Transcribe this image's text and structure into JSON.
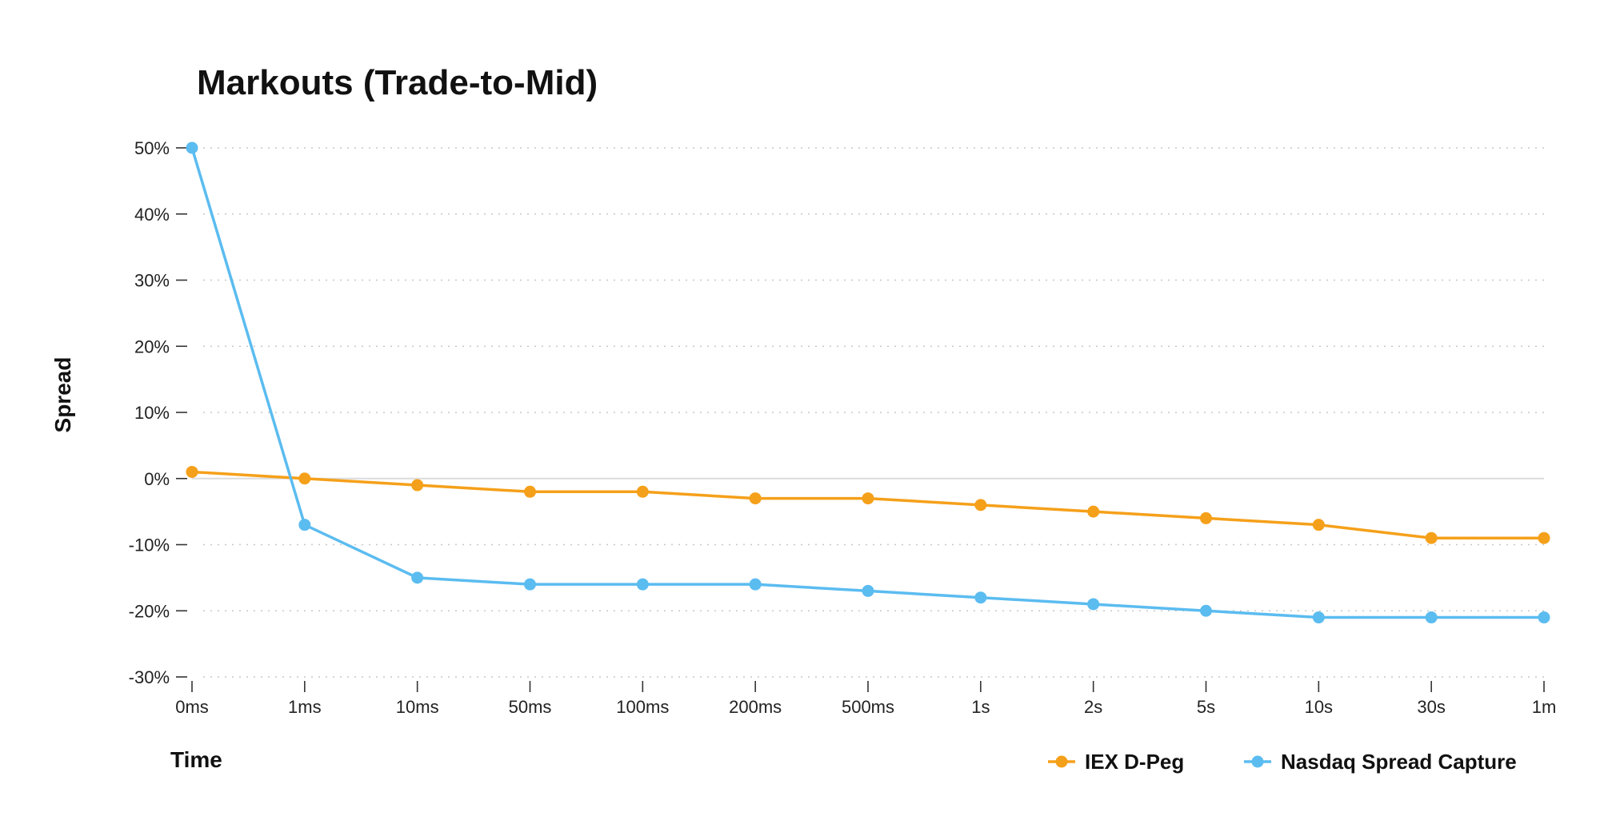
{
  "chart_data": {
    "type": "line",
    "title": "Markouts (Trade-to-Mid)",
    "xlabel": "Time",
    "ylabel": "Spread",
    "categories": [
      "0ms",
      "1ms",
      "10ms",
      "50ms",
      "100ms",
      "200ms",
      "500ms",
      "1s",
      "2s",
      "5s",
      "10s",
      "30s",
      "1m"
    ],
    "y_ticks": [
      "50%",
      "40%",
      "30%",
      "20%",
      "10%",
      "0%",
      "-10%",
      "-20%",
      "-30%"
    ],
    "y_tick_values": [
      50,
      40,
      30,
      20,
      10,
      0,
      -10,
      -20,
      -30
    ],
    "ylim": [
      -30,
      50
    ],
    "y_unit": "%",
    "grid": true,
    "legend_position": "bottom-right",
    "series": [
      {
        "name": "IEX D-Peg",
        "color": "#f5a01a",
        "values": [
          1,
          0,
          -1,
          -2,
          -2,
          -3,
          -3,
          -4,
          -5,
          -6,
          -7,
          -9,
          -9
        ]
      },
      {
        "name": "Nasdaq Spread Capture",
        "color": "#5bbcf0",
        "values": [
          50,
          -7,
          -15,
          -16,
          -16,
          -16,
          -17,
          -18,
          -19,
          -20,
          -21,
          -21,
          -21
        ]
      }
    ]
  }
}
